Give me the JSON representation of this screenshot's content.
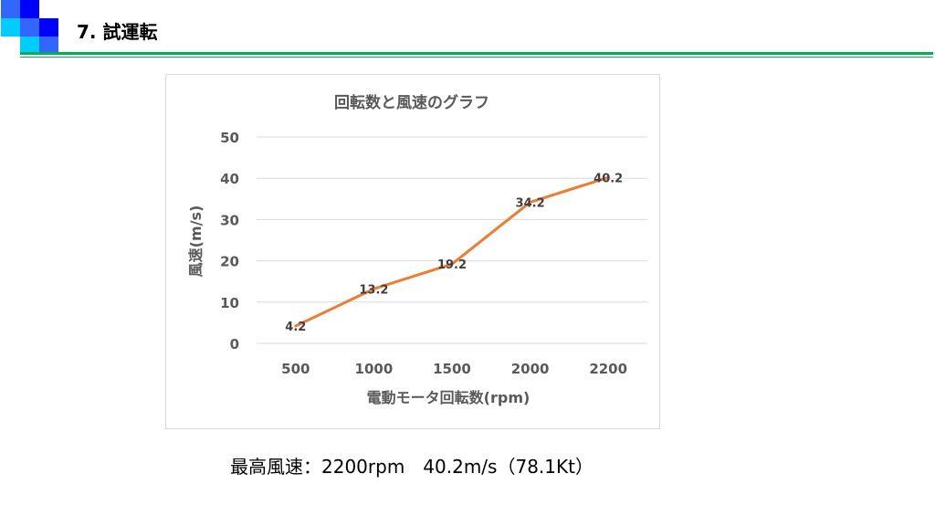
{
  "slide": {
    "title": "7. 試運転",
    "summary": "最高風速：2200rpm　40.2m/s（78.1Kt）"
  },
  "colors": {
    "accent_green": "#00b050",
    "line_orange": "#ed7d31",
    "grid": "#d9d9d9",
    "axis_text": "#595959",
    "square_blue_dark": "#0000ff",
    "square_blue_mid": "#3366ff",
    "square_cyan": "#00ccff"
  },
  "chart_data": {
    "type": "line",
    "title": "回転数と風速のグラフ",
    "xlabel": "電動モータ回転数(rpm)",
    "ylabel": "風速(m/s)",
    "categories": [
      "500",
      "1000",
      "1500",
      "2000",
      "2200"
    ],
    "series": [
      {
        "values": [
          4.2,
          13.2,
          19.2,
          34.2,
          40.2
        ],
        "labels": [
          "4.2",
          "13.2",
          "19.2",
          "34.2",
          "40.2"
        ]
      }
    ],
    "ylim": [
      0,
      50
    ],
    "yticks": [
      "0",
      "10",
      "20",
      "30",
      "40",
      "50"
    ],
    "grid": true,
    "legend": "none"
  }
}
